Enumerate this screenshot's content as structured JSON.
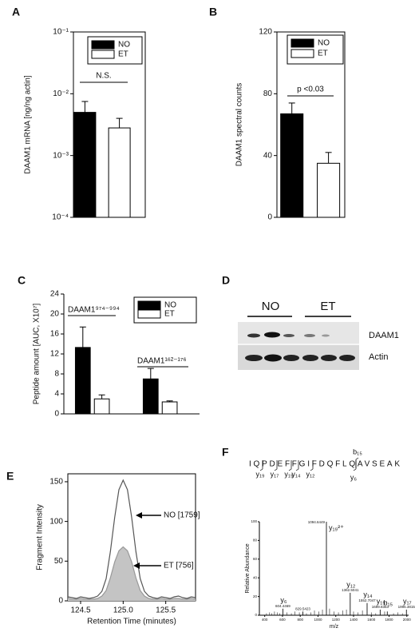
{
  "chart_data": [
    {
      "panel": "A",
      "type": "bar",
      "log_y": true,
      "ylabel": "DAAM1 mRNA [ng/ng actin]",
      "series": [
        {
          "name": "NO",
          "color": "#000000",
          "values": [
            0.005
          ],
          "errors": [
            0.0025
          ]
        },
        {
          "name": "ET",
          "color": "#ffffff",
          "values": [
            0.0028
          ],
          "errors": [
            0.0012
          ]
        }
      ],
      "ylim": [
        0.0001,
        0.1
      ],
      "yticks": [
        {
          "value": 0.0001,
          "label": "10⁻⁴"
        },
        {
          "value": 0.001,
          "label": "10⁻³"
        },
        {
          "value": 0.01,
          "label": "10⁻²"
        },
        {
          "value": 0.1,
          "label": "10⁻¹"
        }
      ],
      "annotation": "N.S.",
      "legend": "upper right"
    },
    {
      "panel": "B",
      "type": "bar",
      "ylabel": "DAAM1 spectral counts",
      "series": [
        {
          "name": "NO",
          "color": "#000000",
          "values": [
            67
          ],
          "errors": [
            7
          ]
        },
        {
          "name": "ET",
          "color": "#ffffff",
          "values": [
            35
          ],
          "errors": [
            7
          ]
        }
      ],
      "ylim": [
        0,
        120
      ],
      "yticks": [
        0,
        40,
        80,
        120
      ],
      "annotation": "p <0.03",
      "legend": "upper right"
    },
    {
      "panel": "C",
      "type": "bar",
      "ylabel": "Peptide amount [AUC, X10⁷]",
      "categories": [
        "DAAM1⁹⁷⁴⁻⁹⁹⁴",
        "DAAM1¹⁶²⁻¹⁷⁶"
      ],
      "series": [
        {
          "name": "NO",
          "color": "#000000",
          "values": [
            13.3,
            7.0
          ],
          "errors": [
            4.1,
            2.1
          ]
        },
        {
          "name": "ET",
          "color": "#ffffff",
          "values": [
            3.0,
            2.4
          ],
          "errors": [
            0.8,
            0.2
          ]
        }
      ],
      "ylim": [
        0,
        24
      ],
      "yticks": [
        0,
        4,
        8,
        12,
        16,
        20,
        24
      ],
      "legend": "upper right"
    },
    {
      "panel": "E",
      "type": "line",
      "ylabel": "Fragment Intensity",
      "xlabel": "Retention Time (minutes)",
      "x": [
        124.35,
        124.4,
        124.45,
        124.5,
        124.55,
        124.6,
        124.65,
        124.7,
        124.75,
        124.8,
        124.85,
        124.9,
        124.95,
        125.0,
        125.05,
        125.1,
        125.15,
        125.2,
        125.25,
        125.3,
        125.35,
        125.4,
        125.45,
        125.5,
        125.55,
        125.6,
        125.65,
        125.7,
        125.75,
        125.8,
        125.85
      ],
      "series": [
        {
          "name": "NO",
          "color": "#555555",
          "values": [
            5,
            4,
            3,
            5,
            4,
            3,
            4,
            6,
            12,
            28,
            62,
            105,
            140,
            152,
            140,
            105,
            62,
            28,
            12,
            6,
            4,
            3,
            5,
            4,
            3,
            5,
            6,
            4,
            3,
            5,
            4
          ]
        },
        {
          "name": "ET",
          "color": "#999999",
          "fill_color": "#c4c4c4",
          "values": [
            3,
            2,
            2,
            3,
            2,
            2,
            2,
            3,
            6,
            13,
            29,
            49,
            63,
            68,
            63,
            49,
            29,
            13,
            6,
            3,
            2,
            2,
            3,
            2,
            2,
            3,
            3,
            2,
            2,
            3,
            2
          ]
        }
      ],
      "annotations": [
        "NO [1759]",
        "ET [756]"
      ],
      "xlim": [
        124.35,
        125.85
      ],
      "xticks": [
        124.5,
        {
          "value": 125,
          "label": "125.0"
        },
        125.5
      ],
      "ylim": [
        0,
        160
      ],
      "yticks": [
        0,
        50,
        100,
        150
      ]
    },
    {
      "panel": "F",
      "type": "spectrum",
      "ylabel": "Relative Abundance",
      "xlabel": "m/z",
      "sequence": "IQPDEFFGIFDQFLQAVSEAK",
      "fragments_above": [
        "b₁₅"
      ],
      "fragments_below": [
        "y₁₉",
        "y₁₇",
        "y₁₅",
        "y₁₄",
        "y₁₂",
        "y₆"
      ],
      "peaks": {
        "mz": [
          604.4469,
          829.5423,
          1094.6449,
          1362.5041,
          1552.7047,
          1699.8363,
          1780,
          1995.3815
        ],
        "values": [
          7,
          4,
          100,
          24,
          13,
          6,
          4,
          6
        ],
        "mz_labels": [
          "604.4469",
          "829.5423",
          "1094.6449",
          "1362.5041",
          "1552.7047",
          "1699.8363",
          null,
          "1995.3815"
        ],
        "ions": [
          "y₆",
          null,
          "y₁₉²⁺",
          "y₁₂",
          "y₁₄",
          "y₁₅",
          "b₁₅",
          "y₁₇"
        ]
      },
      "noise": {
        "mz": [
          420,
          455,
          480,
          510,
          540,
          570,
          650,
          700,
          740,
          790,
          870,
          920,
          960,
          1010,
          1050,
          1130,
          1180,
          1230,
          1280,
          1320,
          1400,
          1450,
          1500,
          1600,
          1650,
          1750,
          1850,
          1900,
          1950
        ],
        "values": [
          2,
          3,
          2,
          4,
          3,
          2,
          3,
          2,
          4,
          3,
          2,
          3,
          5,
          4,
          6,
          7,
          4,
          3,
          5,
          6,
          4,
          3,
          5,
          3,
          2,
          4,
          2,
          3,
          2
        ]
      },
      "xlim": [
        340,
        2020
      ],
      "xticks": [
        400,
        600,
        800,
        1000,
        1200,
        1400,
        1600,
        1800,
        2000
      ],
      "ylim": [
        0,
        100
      ],
      "yticks": [
        0,
        20,
        40,
        60,
        80,
        100
      ]
    }
  ],
  "blot": {
    "panel": "D",
    "groups": [
      "NO",
      "ET"
    ],
    "bands": [
      "DAAM1",
      "Actin"
    ]
  }
}
